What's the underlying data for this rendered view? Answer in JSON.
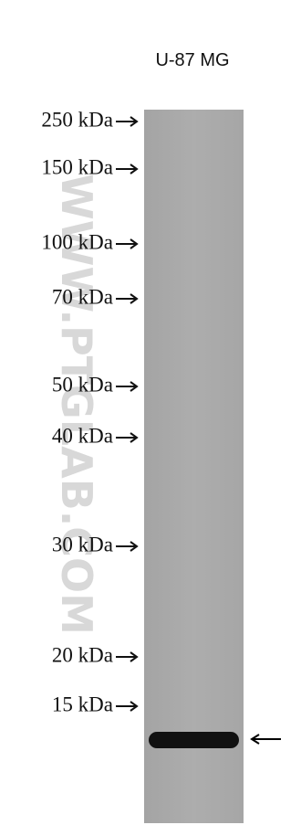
{
  "lane_label": "U-87 MG",
  "markers": [
    "250 kDa",
    "150 kDa",
    "100 kDa",
    "70 kDa",
    "50 kDa",
    "40 kDa",
    "30 kDa",
    "20 kDa",
    "15 kDa"
  ],
  "watermark": "WWW.PTGLAB.COM"
}
